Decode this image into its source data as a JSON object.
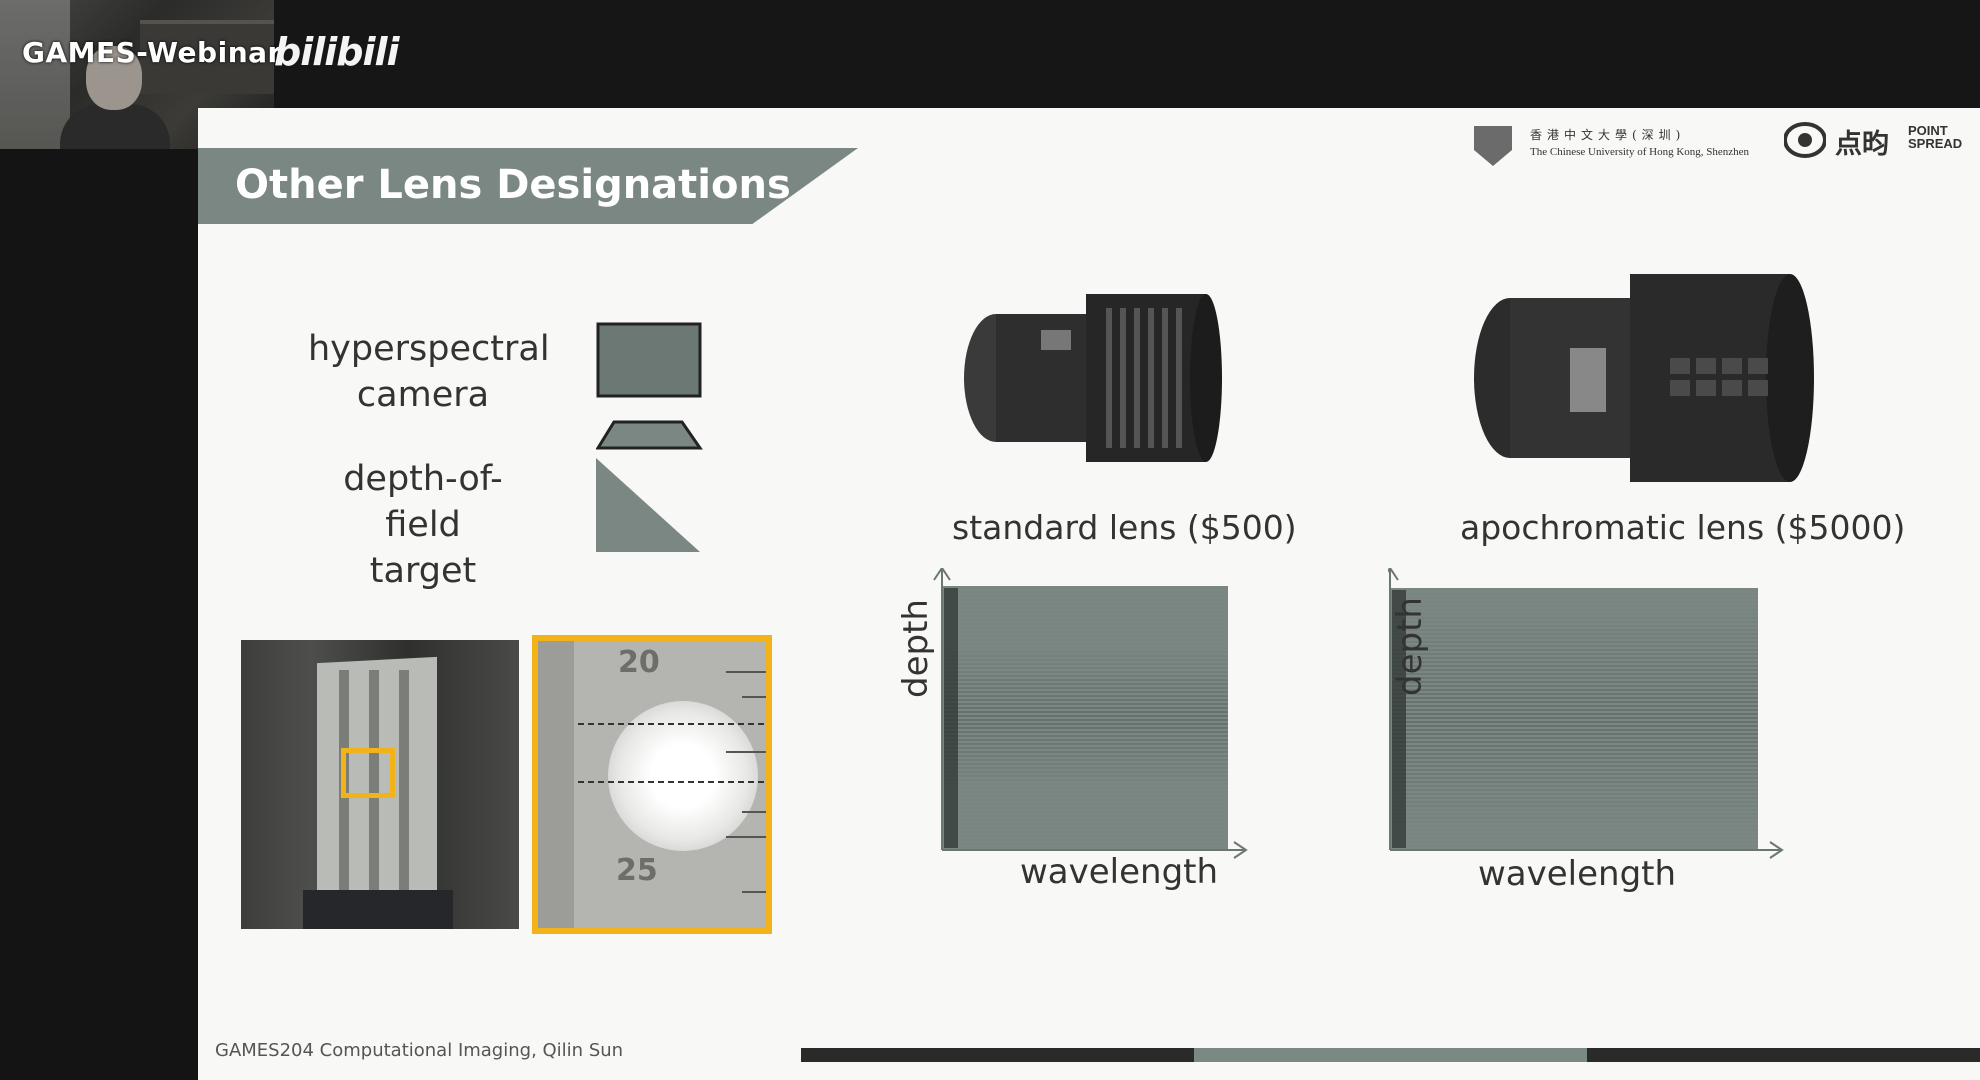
{
  "stream": {
    "webcam_label": "GAMES-Webinar",
    "platform_logo": "bilibili"
  },
  "slide": {
    "title": "Other Lens Designations",
    "logos": {
      "cuhk_chinese": "香港中文大學(深圳)",
      "cuhk_english": "The Chinese University of Hong Kong, Shenzhen",
      "pointspread_cn": "点昀",
      "pointspread_en_1": "POINT",
      "pointspread_en_2": "SPREAD"
    },
    "legend": {
      "camera_line1": "hyperspectral",
      "camera_line2": "camera",
      "target_line1": "depth-of-field",
      "target_line2": "target"
    },
    "zoom_numbers": [
      "20",
      "25"
    ],
    "lenses": [
      {
        "label": "standard lens ($500)"
      },
      {
        "label": "apochromatic lens ($5000)"
      }
    ],
    "plots": [
      {
        "xlabel": "wavelength",
        "ylabel": "depth"
      },
      {
        "xlabel": "wavelength",
        "ylabel": "depth"
      }
    ],
    "footer": "GAMES204 Computational Imaging, Qilin Sun",
    "progress": {
      "segment_index": 1,
      "segment_count": 3
    }
  },
  "colors": {
    "accent_banner": "#7a8783",
    "highlight": "#f2b318",
    "plot_bg": "#7b8783"
  }
}
